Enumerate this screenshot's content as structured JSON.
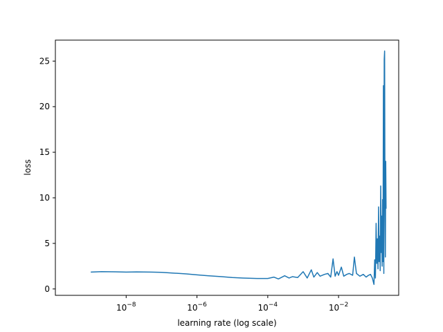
{
  "chart_data": {
    "type": "line",
    "title": "",
    "xlabel": "learning rate (log scale)",
    "ylabel": "loss",
    "x_scale": "log",
    "xlim": [
      1e-10,
      0.5
    ],
    "ylim": [
      -0.7,
      27.3
    ],
    "grid": false,
    "legend": "none",
    "x_ticks": [
      {
        "value": 1e-08,
        "label_base": "10",
        "label_exp": "−8"
      },
      {
        "value": 1e-06,
        "label_base": "10",
        "label_exp": "−6"
      },
      {
        "value": 0.0001,
        "label_base": "10",
        "label_exp": "−4"
      },
      {
        "value": 0.01,
        "label_base": "10",
        "label_exp": "−2"
      }
    ],
    "y_ticks": [
      {
        "value": 0,
        "label": "0"
      },
      {
        "value": 5,
        "label": "5"
      },
      {
        "value": 10,
        "label": "10"
      },
      {
        "value": 15,
        "label": "15"
      },
      {
        "value": 20,
        "label": "20"
      },
      {
        "value": 25,
        "label": "25"
      }
    ],
    "series": [
      {
        "color": "#1f77b4",
        "x": [
          1e-09,
          2e-09,
          5e-09,
          1e-08,
          2e-08,
          5e-08,
          1e-07,
          2e-07,
          5e-07,
          1e-06,
          2e-06,
          5e-06,
          1e-05,
          2e-05,
          5e-05,
          0.0001,
          0.00015,
          0.0002,
          0.0003,
          0.0004,
          0.0005,
          0.0007,
          0.001,
          0.0013,
          0.0017,
          0.002,
          0.0025,
          0.003,
          0.004,
          0.005,
          0.006,
          0.007,
          0.008,
          0.009,
          0.01,
          0.012,
          0.014,
          0.017,
          0.02,
          0.025,
          0.028,
          0.032,
          0.04,
          0.05,
          0.06,
          0.07,
          0.08,
          0.09,
          0.1,
          0.105,
          0.11,
          0.115,
          0.12,
          0.125,
          0.13,
          0.135,
          0.14,
          0.145,
          0.15,
          0.155,
          0.16,
          0.165,
          0.17,
          0.175,
          0.18,
          0.185,
          0.19,
          0.195,
          0.2,
          0.205,
          0.21,
          0.215,
          0.22
        ],
        "y": [
          1.85,
          1.9,
          1.88,
          1.85,
          1.87,
          1.85,
          1.82,
          1.75,
          1.65,
          1.55,
          1.45,
          1.35,
          1.25,
          1.2,
          1.15,
          1.15,
          1.3,
          1.1,
          1.45,
          1.2,
          1.35,
          1.25,
          1.9,
          1.2,
          2.1,
          1.3,
          1.8,
          1.4,
          1.6,
          1.7,
          1.3,
          3.3,
          1.4,
          1.9,
          1.5,
          2.4,
          1.4,
          1.6,
          1.7,
          1.5,
          3.5,
          1.7,
          1.4,
          1.6,
          1.3,
          1.5,
          1.6,
          1.2,
          0.5,
          3.2,
          1.2,
          7.2,
          2.8,
          5.5,
          2.2,
          9.0,
          3.0,
          5.8,
          2.0,
          11.3,
          4.0,
          8.0,
          2.5,
          9.8,
          3.0,
          22.3,
          1.7,
          25.2,
          26.1,
          8.8,
          3.5,
          14.0,
          8.8
        ]
      }
    ]
  }
}
